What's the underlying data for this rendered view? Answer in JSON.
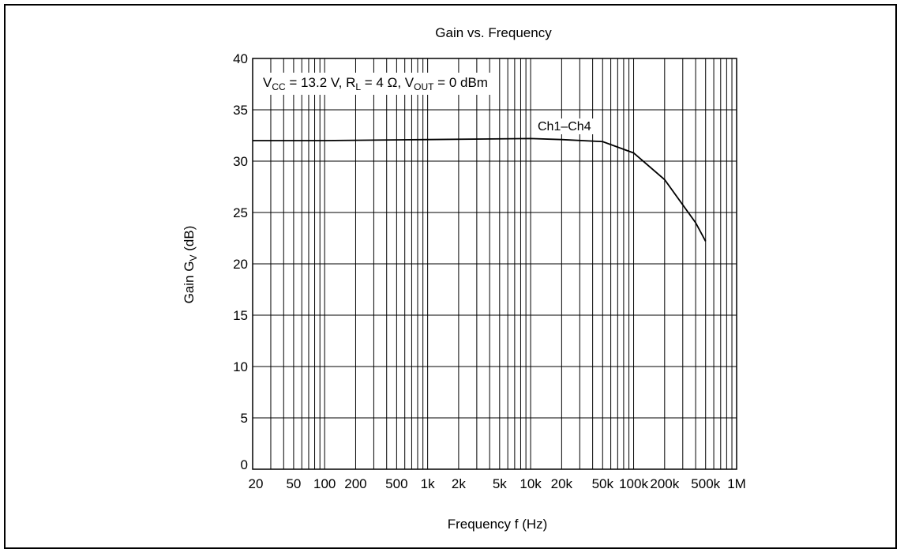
{
  "chart_data": {
    "type": "line",
    "title": "Gain vs. Frequency",
    "subtitle_parts": {
      "v": "V",
      "cc": "CC",
      "vcc_value": " = 13.2 V, R",
      "l": "L",
      "rl_value": " = 4 Ω, V",
      "out": "OUT",
      "vout_value": " = 0 dBm"
    },
    "xlabel": "Frequency  f  (Hz)",
    "ylabel_parts": {
      "main": "Gain  G",
      "sub": "V",
      "unit": "  (dB)"
    },
    "x_scale": "log",
    "xlim": [
      20,
      1000000
    ],
    "ylim": [
      0,
      40
    ],
    "x_ticks": [
      {
        "value": 20,
        "label": "20"
      },
      {
        "value": 50,
        "label": "50"
      },
      {
        "value": 100,
        "label": "100"
      },
      {
        "value": 200,
        "label": "200"
      },
      {
        "value": 500,
        "label": "500"
      },
      {
        "value": 1000,
        "label": "1k"
      },
      {
        "value": 2000,
        "label": "2k"
      },
      {
        "value": 5000,
        "label": "5k"
      },
      {
        "value": 10000,
        "label": "10k"
      },
      {
        "value": 20000,
        "label": "20k"
      },
      {
        "value": 50000,
        "label": "50k"
      },
      {
        "value": 100000,
        "label": "100k"
      },
      {
        "value": 200000,
        "label": "200k"
      },
      {
        "value": 500000,
        "label": "500k"
      },
      {
        "value": 1000000,
        "label": "1M"
      }
    ],
    "y_ticks": [
      0,
      5,
      10,
      15,
      20,
      25,
      30,
      35,
      40
    ],
    "grid": true,
    "series": [
      {
        "name": "Ch1–Ch4",
        "x": [
          20,
          100,
          1000,
          10000,
          20000,
          50000,
          100000,
          200000,
          400000,
          500000
        ],
        "y": [
          32.0,
          32.0,
          32.1,
          32.2,
          32.1,
          31.9,
          30.8,
          28.2,
          24.0,
          22.2
        ]
      }
    ]
  }
}
